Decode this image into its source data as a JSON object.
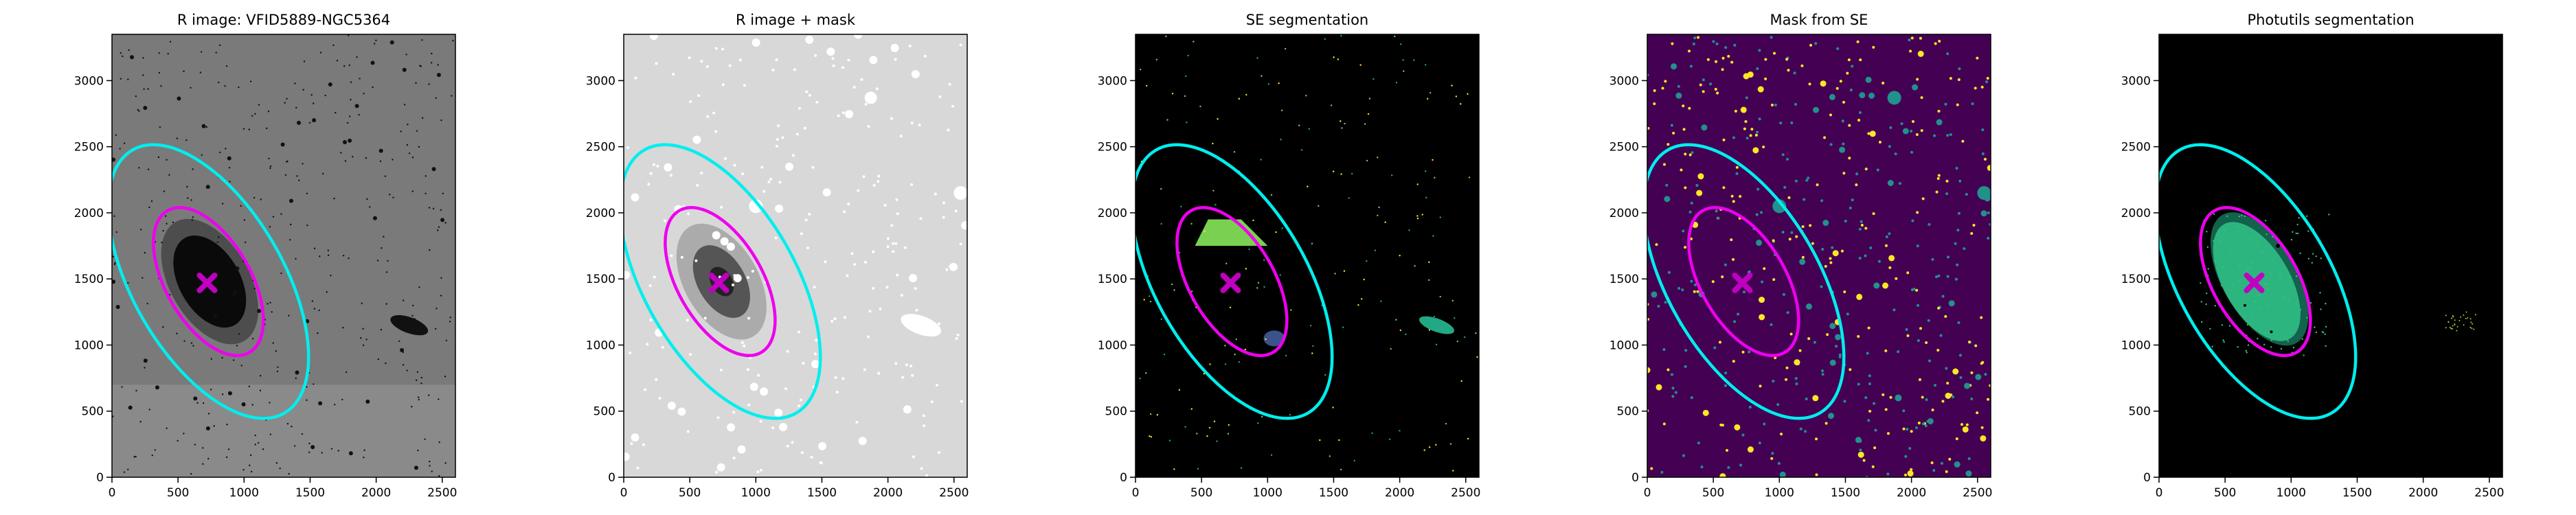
{
  "chart_data": [
    {
      "type": "image",
      "title": "R image: VFID5889-NGC5364",
      "background": "#7a7a7a",
      "xlim": [
        0,
        2600
      ],
      "ylim": [
        0,
        3350
      ],
      "xticks": [
        0,
        500,
        1000,
        1500,
        2000,
        2500
      ],
      "yticks": [
        0,
        500,
        1000,
        1500,
        2000,
        2500,
        3000
      ],
      "ellipses": [
        {
          "color": "#00eeee",
          "x": 730,
          "y": 1480,
          "a": 1150,
          "b": 570,
          "angle": -60
        },
        {
          "color": "#ee00ee",
          "x": 730,
          "y": 1480,
          "a": 620,
          "b": 320,
          "angle": -60
        }
      ],
      "marker": {
        "x": 720,
        "y": 1470,
        "color": "#c000c0"
      }
    },
    {
      "type": "image",
      "title": "R image + mask",
      "background": "#d8d8d8",
      "xlim": [
        0,
        2600
      ],
      "ylim": [
        0,
        3350
      ],
      "xticks": [
        0,
        500,
        1000,
        1500,
        2000,
        2500
      ],
      "yticks": [
        0,
        500,
        1000,
        1500,
        2000,
        2500,
        3000
      ],
      "ellipses": [
        {
          "color": "#00eeee",
          "x": 730,
          "y": 1480,
          "a": 1150,
          "b": 570,
          "angle": -60
        },
        {
          "color": "#ee00ee",
          "x": 730,
          "y": 1480,
          "a": 620,
          "b": 320,
          "angle": -60
        }
      ],
      "marker": {
        "x": 720,
        "y": 1470,
        "color": "#c000c0"
      }
    },
    {
      "type": "image",
      "title": "SE segmentation",
      "background": "#000000",
      "xlim": [
        0,
        2600
      ],
      "ylim": [
        0,
        3350
      ],
      "xticks": [
        0,
        500,
        1000,
        1500,
        2000,
        2500
      ],
      "yticks": [
        0,
        500,
        1000,
        1500,
        2000,
        2500,
        3000
      ],
      "ellipses": [
        {
          "color": "#00eeee",
          "x": 730,
          "y": 1480,
          "a": 1150,
          "b": 570,
          "angle": -60
        },
        {
          "color": "#ee00ee",
          "x": 730,
          "y": 1480,
          "a": 620,
          "b": 320,
          "angle": -60
        }
      ],
      "marker": {
        "x": 720,
        "y": 1470,
        "color": "#c000c0"
      }
    },
    {
      "type": "image",
      "title": "Mask from SE",
      "background": "#440154",
      "xlim": [
        0,
        2600
      ],
      "ylim": [
        0,
        3350
      ],
      "xticks": [
        0,
        500,
        1000,
        1500,
        2000,
        2500
      ],
      "yticks": [
        0,
        500,
        1000,
        1500,
        2000,
        2500,
        3000
      ],
      "ellipses": [
        {
          "color": "#00eeee",
          "x": 730,
          "y": 1480,
          "a": 1150,
          "b": 570,
          "angle": -60
        },
        {
          "color": "#ee00ee",
          "x": 730,
          "y": 1480,
          "a": 620,
          "b": 320,
          "angle": -60
        }
      ],
      "marker": {
        "x": 720,
        "y": 1470,
        "color": "#c000c0"
      }
    },
    {
      "type": "image",
      "title": "Photutils segmentation",
      "background": "#000000",
      "xlim": [
        0,
        2600
      ],
      "ylim": [
        0,
        3350
      ],
      "xticks": [
        0,
        500,
        1000,
        1500,
        2000,
        2500
      ],
      "yticks": [
        0,
        500,
        1000,
        1500,
        2000,
        2500,
        3000
      ],
      "ellipses": [
        {
          "color": "#00eeee",
          "x": 730,
          "y": 1480,
          "a": 1150,
          "b": 570,
          "angle": -60
        },
        {
          "color": "#ee00ee",
          "x": 730,
          "y": 1480,
          "a": 620,
          "b": 320,
          "angle": -60
        }
      ],
      "marker": {
        "x": 720,
        "y": 1470,
        "color": "#c000c0"
      }
    }
  ]
}
